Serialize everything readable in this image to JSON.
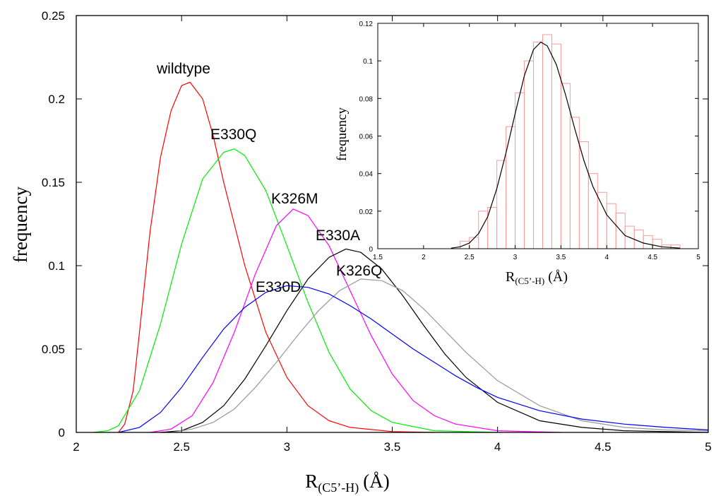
{
  "chart_data": [
    {
      "type": "line",
      "xlabel_main": "R",
      "xlabel_sub": "(C5’-H)",
      "xlabel_unit": "(Å)",
      "ylabel": "frequency",
      "xlim": [
        2,
        5
      ],
      "ylim": [
        0,
        0.25
      ],
      "xticks": [
        "2",
        "2.5",
        "3",
        "3.5",
        "4",
        "4.5",
        "5"
      ],
      "yticks": [
        "0",
        "0.05",
        "0.1",
        "0.15",
        "0.2",
        "0.25"
      ],
      "grid": false,
      "series": [
        {
          "name": "wildtype",
          "color": "#ff0000",
          "points": [
            [
              2.2,
              0
            ],
            [
              2.23,
              0.005
            ],
            [
              2.27,
              0.025
            ],
            [
              2.3,
              0.06
            ],
            [
              2.35,
              0.12
            ],
            [
              2.4,
              0.165
            ],
            [
              2.45,
              0.193
            ],
            [
              2.5,
              0.208
            ],
            [
              2.54,
              0.21
            ],
            [
              2.6,
              0.2
            ],
            [
              2.65,
              0.178
            ],
            [
              2.7,
              0.15
            ],
            [
              2.8,
              0.1
            ],
            [
              2.9,
              0.06
            ],
            [
              3.0,
              0.033
            ],
            [
              3.1,
              0.016
            ],
            [
              3.2,
              0.007
            ],
            [
              3.3,
              0.003
            ],
            [
              3.5,
              0.0005
            ],
            [
              3.7,
              0
            ]
          ]
        },
        {
          "name": "E330Q",
          "color": "#00ee00",
          "points": [
            [
              2.08,
              0
            ],
            [
              2.15,
              0.001
            ],
            [
              2.2,
              0.004
            ],
            [
              2.3,
              0.025
            ],
            [
              2.4,
              0.065
            ],
            [
              2.5,
              0.113
            ],
            [
              2.6,
              0.152
            ],
            [
              2.7,
              0.168
            ],
            [
              2.75,
              0.17
            ],
            [
              2.8,
              0.166
            ],
            [
              2.9,
              0.145
            ],
            [
              3.0,
              0.112
            ],
            [
              3.1,
              0.078
            ],
            [
              3.2,
              0.048
            ],
            [
              3.3,
              0.026
            ],
            [
              3.4,
              0.013
            ],
            [
              3.5,
              0.006
            ],
            [
              3.7,
              0.001
            ],
            [
              4.0,
              0
            ]
          ]
        },
        {
          "name": "K326M",
          "color": "#ff00ff",
          "points": [
            [
              2.35,
              0
            ],
            [
              2.45,
              0.002
            ],
            [
              2.55,
              0.01
            ],
            [
              2.65,
              0.03
            ],
            [
              2.75,
              0.06
            ],
            [
              2.85,
              0.095
            ],
            [
              2.95,
              0.124
            ],
            [
              3.03,
              0.134
            ],
            [
              3.1,
              0.13
            ],
            [
              3.2,
              0.112
            ],
            [
              3.3,
              0.085
            ],
            [
              3.4,
              0.058
            ],
            [
              3.5,
              0.035
            ],
            [
              3.6,
              0.019
            ],
            [
              3.7,
              0.01
            ],
            [
              3.8,
              0.005
            ],
            [
              4.0,
              0.001
            ],
            [
              4.3,
              0
            ]
          ]
        },
        {
          "name": "E330A",
          "color": "#000000",
          "points": [
            [
              2.4,
              0
            ],
            [
              2.5,
              0.001
            ],
            [
              2.6,
              0.006
            ],
            [
              2.7,
              0.016
            ],
            [
              2.8,
              0.032
            ],
            [
              2.9,
              0.052
            ],
            [
              3.0,
              0.073
            ],
            [
              3.1,
              0.092
            ],
            [
              3.2,
              0.105
            ],
            [
              3.28,
              0.11
            ],
            [
              3.35,
              0.108
            ],
            [
              3.45,
              0.098
            ],
            [
              3.55,
              0.082
            ],
            [
              3.65,
              0.064
            ],
            [
              3.75,
              0.047
            ],
            [
              3.85,
              0.033
            ],
            [
              4.0,
              0.018
            ],
            [
              4.2,
              0.007
            ],
            [
              4.4,
              0.003
            ],
            [
              4.6,
              0.001
            ],
            [
              5.0,
              0
            ]
          ]
        },
        {
          "name": "K326Q",
          "color": "#999999",
          "points": [
            [
              2.45,
              0
            ],
            [
              2.55,
              0.002
            ],
            [
              2.65,
              0.006
            ],
            [
              2.75,
              0.014
            ],
            [
              2.85,
              0.027
            ],
            [
              2.95,
              0.042
            ],
            [
              3.05,
              0.058
            ],
            [
              3.15,
              0.073
            ],
            [
              3.25,
              0.085
            ],
            [
              3.35,
              0.092
            ],
            [
              3.45,
              0.091
            ],
            [
              3.55,
              0.085
            ],
            [
              3.65,
              0.074
            ],
            [
              3.75,
              0.061
            ],
            [
              3.85,
              0.048
            ],
            [
              4.0,
              0.031
            ],
            [
              4.2,
              0.016
            ],
            [
              4.4,
              0.007
            ],
            [
              4.6,
              0.003
            ],
            [
              4.8,
              0.0015
            ],
            [
              5.0,
              0.001
            ]
          ]
        },
        {
          "name": "E330D",
          "color": "#0000ff",
          "points": [
            [
              2.2,
              0
            ],
            [
              2.3,
              0.003
            ],
            [
              2.4,
              0.012
            ],
            [
              2.5,
              0.027
            ],
            [
              2.6,
              0.045
            ],
            [
              2.7,
              0.062
            ],
            [
              2.8,
              0.075
            ],
            [
              2.9,
              0.084
            ],
            [
              3.0,
              0.088
            ],
            [
              3.1,
              0.087
            ],
            [
              3.2,
              0.083
            ],
            [
              3.3,
              0.076
            ],
            [
              3.4,
              0.068
            ],
            [
              3.5,
              0.059
            ],
            [
              3.6,
              0.05
            ],
            [
              3.7,
              0.042
            ],
            [
              3.8,
              0.034
            ],
            [
              3.9,
              0.027
            ],
            [
              4.0,
              0.021
            ],
            [
              4.2,
              0.013
            ],
            [
              4.4,
              0.008
            ],
            [
              4.6,
              0.005
            ],
            [
              4.8,
              0.003
            ],
            [
              5.0,
              0.0015
            ]
          ]
        }
      ]
    },
    {
      "type": "bar",
      "ylabel": "frequency",
      "xlabel_main": "R",
      "xlabel_sub": "(C5’-H)",
      "xlabel_unit": "(Å)",
      "xlim": [
        1.5,
        5
      ],
      "ylim": [
        0,
        0.12
      ],
      "xticks": [
        "1.5",
        "2",
        "2.5",
        "3",
        "3.5",
        "4",
        "4.5",
        "5"
      ],
      "yticks": [
        "0",
        "0.02",
        "0.04",
        "0.06",
        "0.08",
        "0.1",
        "0.12"
      ],
      "bin_width": 0.1,
      "bin_starts": [
        2.4,
        2.5,
        2.6,
        2.7,
        2.8,
        2.9,
        3.0,
        3.1,
        3.2,
        3.3,
        3.4,
        3.5,
        3.6,
        3.7,
        3.8,
        3.9,
        4.0,
        4.1,
        4.2,
        4.3,
        4.4,
        4.5,
        4.6,
        4.7
      ],
      "bar_values": [
        0.004,
        0.006,
        0.02,
        0.022,
        0.047,
        0.065,
        0.083,
        0.1,
        0.11,
        0.114,
        0.109,
        0.088,
        0.07,
        0.057,
        0.04,
        0.03,
        0.024,
        0.019,
        0.012,
        0.01,
        0.007,
        0.005,
        0.002,
        0.002
      ],
      "bar_color": "#ff9999",
      "fit_color": "#000000",
      "fit_points": [
        [
          2.3,
          0.0003
        ],
        [
          2.4,
          0.001
        ],
        [
          2.5,
          0.003
        ],
        [
          2.6,
          0.008
        ],
        [
          2.7,
          0.017
        ],
        [
          2.8,
          0.032
        ],
        [
          2.9,
          0.051
        ],
        [
          3.0,
          0.072
        ],
        [
          3.1,
          0.092
        ],
        [
          3.2,
          0.106
        ],
        [
          3.28,
          0.11
        ],
        [
          3.35,
          0.108
        ],
        [
          3.45,
          0.098
        ],
        [
          3.55,
          0.082
        ],
        [
          3.65,
          0.064
        ],
        [
          3.75,
          0.047
        ],
        [
          3.85,
          0.033
        ],
        [
          4.0,
          0.018
        ],
        [
          4.2,
          0.007
        ],
        [
          4.4,
          0.003
        ],
        [
          4.6,
          0.001
        ],
        [
          4.8,
          0.0003
        ]
      ]
    }
  ]
}
